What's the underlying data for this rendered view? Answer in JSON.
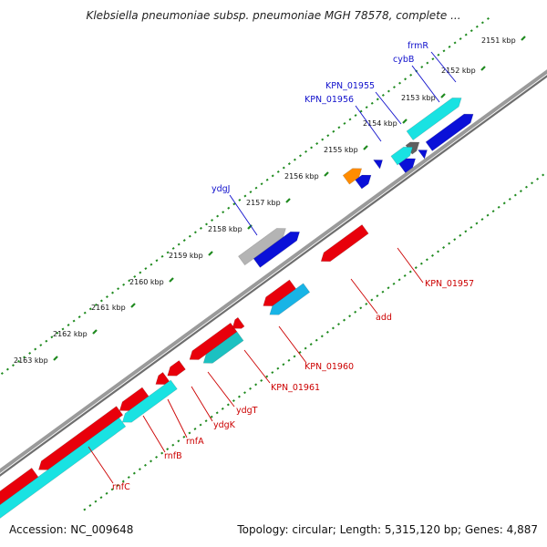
{
  "title": "Klebsiella pneumoniae subsp. pneumoniae MGH 78578, complete ...",
  "footer": {
    "accession": "Accession: NC_009648",
    "summary": "Topology: circular; Length: 5,315,120 bp; Genes: 4,887"
  },
  "colors": {
    "backbone": "#7b7b7b",
    "tick": "#1f8a1f",
    "label_plus": "#1010cc",
    "label_minus": "#cc0000",
    "red": "#e8000b",
    "blue": "#0a10d8",
    "cyan": "#19e2e2",
    "teal": "#1cc1c1",
    "skyblue": "#18b4e6",
    "orange": "#ff8c00",
    "gray": "#b4b4b4",
    "darkgray": "#606060"
  },
  "ticks": [
    {
      "label": "2151 kbp"
    },
    {
      "label": "2152 kbp"
    },
    {
      "label": "2153 kbp"
    },
    {
      "label": "2154 kbp"
    },
    {
      "label": "2155 kbp"
    },
    {
      "label": "2156 kbp"
    },
    {
      "label": "2157 kbp"
    },
    {
      "label": "2158 kbp"
    },
    {
      "label": "2159 kbp"
    },
    {
      "label": "2160 kbp"
    },
    {
      "label": "2161 kbp"
    },
    {
      "label": "2162 kbp"
    },
    {
      "label": "2163 kbp"
    }
  ],
  "genes_plus": [
    {
      "name": "frmR"
    },
    {
      "name": "cybB"
    },
    {
      "name": "KPN_01955"
    },
    {
      "name": "KPN_01956"
    },
    {
      "name": "ydgJ"
    }
  ],
  "genes_minus": [
    {
      "name": "KPN_01957"
    },
    {
      "name": "add"
    },
    {
      "name": "KPN_01960"
    },
    {
      "name": "KPN_01961"
    },
    {
      "name": "ydgT"
    },
    {
      "name": "ydgK"
    },
    {
      "name": "rnfA"
    },
    {
      "name": "rnfB"
    },
    {
      "name": "rnfC"
    }
  ]
}
